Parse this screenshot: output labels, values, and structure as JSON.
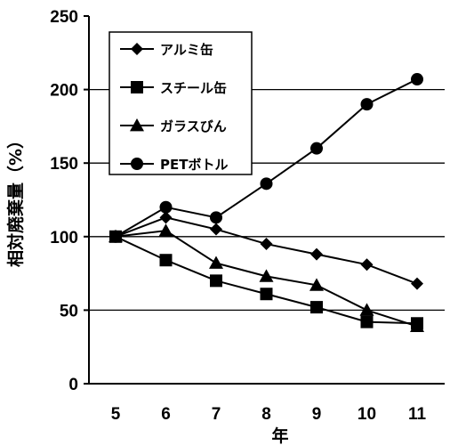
{
  "chart_data": {
    "type": "line",
    "xlabel": "年",
    "ylabel": "相対廃棄量（%）",
    "x": [
      "5",
      "6",
      "7",
      "8",
      "9",
      "10",
      "11"
    ],
    "ylim": [
      0,
      250
    ],
    "yticks": [
      0,
      50,
      100,
      150,
      200,
      250
    ],
    "grid": "horizontal",
    "legend_position": "top-left",
    "series": [
      {
        "name": "アルミ缶",
        "marker": "diamond",
        "values": [
          100,
          113,
          105,
          95,
          88,
          81,
          68
        ]
      },
      {
        "name": "スチール缶",
        "marker": "square",
        "values": [
          100,
          84,
          70,
          61,
          52,
          42,
          41
        ]
      },
      {
        "name": "ガラスびん",
        "marker": "triangle",
        "values": [
          100,
          104,
          82,
          73,
          67,
          50,
          39
        ]
      },
      {
        "name": "PETボトル",
        "marker": "circle",
        "values": [
          100,
          120,
          113,
          136,
          160,
          190,
          207
        ]
      }
    ]
  }
}
